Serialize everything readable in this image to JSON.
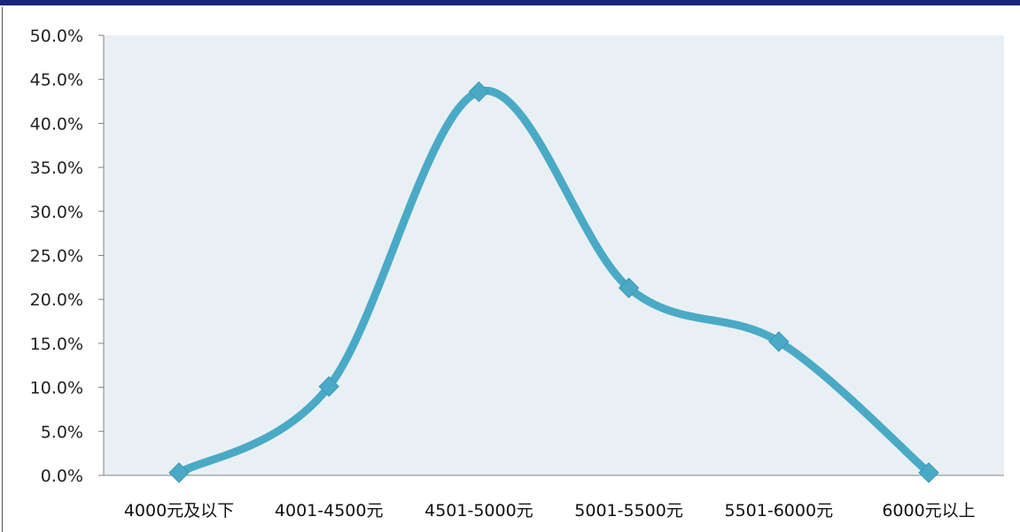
{
  "chart_data": {
    "type": "line",
    "smooth": true,
    "title": "",
    "xlabel": "",
    "ylabel": "",
    "categories": [
      "4000元及以下",
      "4001-4500元",
      "4501-5000元",
      "5001-5500元",
      "5501-6000元",
      "6000元以上"
    ],
    "series": [
      {
        "values": [
          0.3,
          10.1,
          43.6,
          21.3,
          15.2,
          0.3
        ],
        "color": "#4aaac6",
        "marker": "diamond"
      }
    ],
    "ylim": [
      0,
      50
    ],
    "yticks": [
      "0.0%",
      "5.0%",
      "10.0%",
      "15.0%",
      "20.0%",
      "25.0%",
      "30.0%",
      "35.0%",
      "40.0%",
      "45.0%",
      "50.0%"
    ],
    "grid": false,
    "legend": "none",
    "plot_background": "#e9f0f4"
  }
}
